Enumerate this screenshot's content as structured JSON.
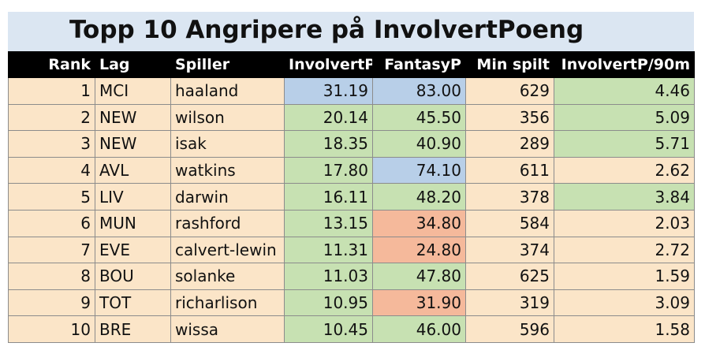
{
  "title": "Topp 10 Angripere på InvolvertPoeng",
  "columns": [
    "Rank",
    "Lag",
    "Spiller",
    "InvolvertP",
    "FantasyP",
    "Min spilt",
    "InvolvertP/90m"
  ],
  "colors": {
    "title_bg": "#dbe6f2",
    "header_bg": "#000000",
    "cell_bg": "#fbe5c8",
    "green": "#c7e1b2",
    "blue": "#b8cfe8",
    "salmon": "#f5b99b"
  },
  "chart_data": {
    "type": "table",
    "title": "Topp 10 Angripere på InvolvertPoeng",
    "columns": [
      "Rank",
      "Lag",
      "Spiller",
      "InvolvertP",
      "FantasyP",
      "Min spilt",
      "InvolvertP/90m"
    ],
    "rows": [
      {
        "rank": "1",
        "lag": "MCI",
        "spiller": "haaland",
        "involvertp": "31.19",
        "fantasyp": "83.00",
        "min": "629",
        "per90": "4.46",
        "c_inv": "blue",
        "c_fan": "blue",
        "c_min": "",
        "c_p90": "green"
      },
      {
        "rank": "2",
        "lag": "NEW",
        "spiller": "wilson",
        "involvertp": "20.14",
        "fantasyp": "45.50",
        "min": "356",
        "per90": "5.09",
        "c_inv": "green",
        "c_fan": "green",
        "c_min": "",
        "c_p90": "green"
      },
      {
        "rank": "3",
        "lag": "NEW",
        "spiller": "isak",
        "involvertp": "18.35",
        "fantasyp": "40.90",
        "min": "289",
        "per90": "5.71",
        "c_inv": "green",
        "c_fan": "green",
        "c_min": "",
        "c_p90": "green"
      },
      {
        "rank": "4",
        "lag": "AVL",
        "spiller": "watkins",
        "involvertp": "17.80",
        "fantasyp": "74.10",
        "min": "611",
        "per90": "2.62",
        "c_inv": "green",
        "c_fan": "blue",
        "c_min": "",
        "c_p90": ""
      },
      {
        "rank": "5",
        "lag": "LIV",
        "spiller": "darwin",
        "involvertp": "16.11",
        "fantasyp": "48.20",
        "min": "378",
        "per90": "3.84",
        "c_inv": "green",
        "c_fan": "green",
        "c_min": "",
        "c_p90": "green"
      },
      {
        "rank": "6",
        "lag": "MUN",
        "spiller": "rashford",
        "involvertp": "13.15",
        "fantasyp": "34.80",
        "min": "584",
        "per90": "2.03",
        "c_inv": "green",
        "c_fan": "salmon",
        "c_min": "",
        "c_p90": ""
      },
      {
        "rank": "7",
        "lag": "EVE",
        "spiller": "calvert-lewin",
        "involvertp": "11.31",
        "fantasyp": "24.80",
        "min": "374",
        "per90": "2.72",
        "c_inv": "green",
        "c_fan": "salmon",
        "c_min": "",
        "c_p90": ""
      },
      {
        "rank": "8",
        "lag": "BOU",
        "spiller": "solanke",
        "involvertp": "11.03",
        "fantasyp": "47.80",
        "min": "625",
        "per90": "1.59",
        "c_inv": "green",
        "c_fan": "green",
        "c_min": "",
        "c_p90": ""
      },
      {
        "rank": "9",
        "lag": "TOT",
        "spiller": "richarlison",
        "involvertp": "10.95",
        "fantasyp": "31.90",
        "min": "319",
        "per90": "3.09",
        "c_inv": "green",
        "c_fan": "salmon",
        "c_min": "",
        "c_p90": ""
      },
      {
        "rank": "10",
        "lag": "BRE",
        "spiller": "wissa",
        "involvertp": "10.45",
        "fantasyp": "46.00",
        "min": "596",
        "per90": "1.58",
        "c_inv": "green",
        "c_fan": "green",
        "c_min": "",
        "c_p90": ""
      }
    ]
  }
}
